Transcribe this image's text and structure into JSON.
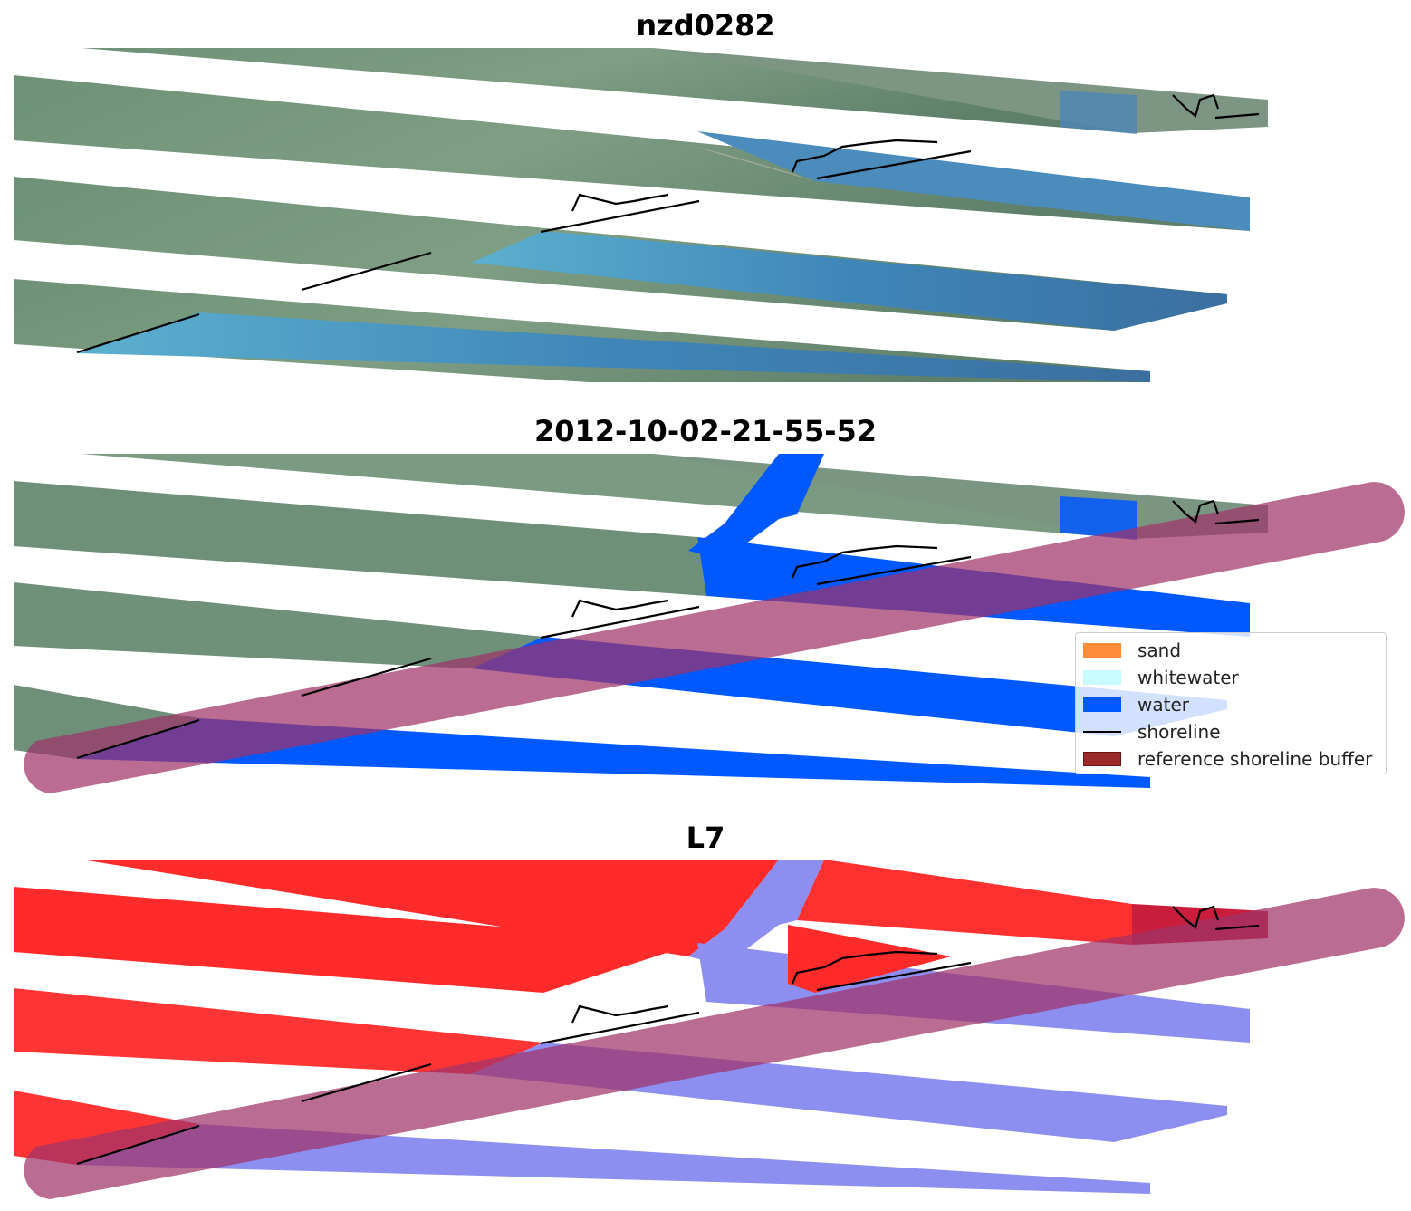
{
  "panels": [
    {
      "title": "nzd0282",
      "kind": "rgb"
    },
    {
      "title": "2012-10-02-21-55-52",
      "kind": "classified"
    },
    {
      "title": "L7",
      "kind": "index"
    }
  ],
  "colors": {
    "land": "#6f8f78",
    "land_dark": "#4f6f5a",
    "water_rgb": "#3f7fb0",
    "water_shallow": "#5fa7c8",
    "sand_rgb": "#b9b3a6",
    "class_water": "#0058ff",
    "class_sand": "#ff8c3a",
    "class_whitewater": "#c8fbff",
    "buffer": "#a0336a",
    "buffer_legend": "#9b2a2a",
    "index_red": "#ff2a2a",
    "index_blue": "#8c8ef0",
    "shoreline": "#000000"
  },
  "legend": {
    "items": [
      {
        "label": "sand",
        "type": "patch",
        "color": "#ff8c3a"
      },
      {
        "label": "whitewater",
        "type": "patch",
        "color": "#c8fbff"
      },
      {
        "label": "water",
        "type": "patch",
        "color": "#0058ff"
      },
      {
        "label": "shoreline",
        "type": "line",
        "color": "#000000"
      },
      {
        "label": "reference shoreline buffer",
        "type": "patch",
        "color": "#9b2a2a"
      }
    ]
  }
}
